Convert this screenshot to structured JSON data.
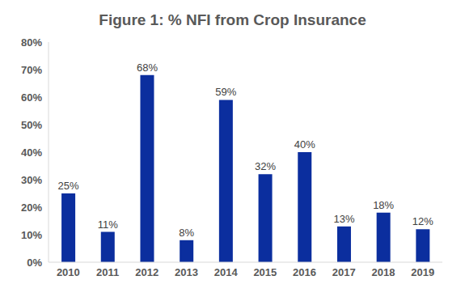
{
  "chart_data": {
    "type": "bar",
    "title": "Figure 1:  % NFI from Crop Insurance",
    "categories": [
      "2010",
      "2011",
      "2012",
      "2013",
      "2014",
      "2015",
      "2016",
      "2017",
      "2018",
      "2019"
    ],
    "values": [
      25,
      11,
      68,
      8,
      59,
      32,
      40,
      13,
      18,
      12
    ],
    "value_labels": [
      "25%",
      "11%",
      "68%",
      "8%",
      "59%",
      "32%",
      "40%",
      "13%",
      "18%",
      "12%"
    ],
    "color": "#0b2e9e",
    "ylim": [
      0,
      80
    ],
    "yticks": [
      {
        "value": 0,
        "label": "0%"
      },
      {
        "value": 10,
        "label": "10%"
      },
      {
        "value": 20,
        "label": "20%"
      },
      {
        "value": 30,
        "label": "30%"
      },
      {
        "value": 40,
        "label": "40%"
      },
      {
        "value": 50,
        "label": "50%"
      },
      {
        "value": 60,
        "label": "60%"
      },
      {
        "value": 70,
        "label": "70%"
      },
      {
        "value": 80,
        "label": "80%"
      }
    ],
    "grid": false,
    "data_labels": true
  }
}
